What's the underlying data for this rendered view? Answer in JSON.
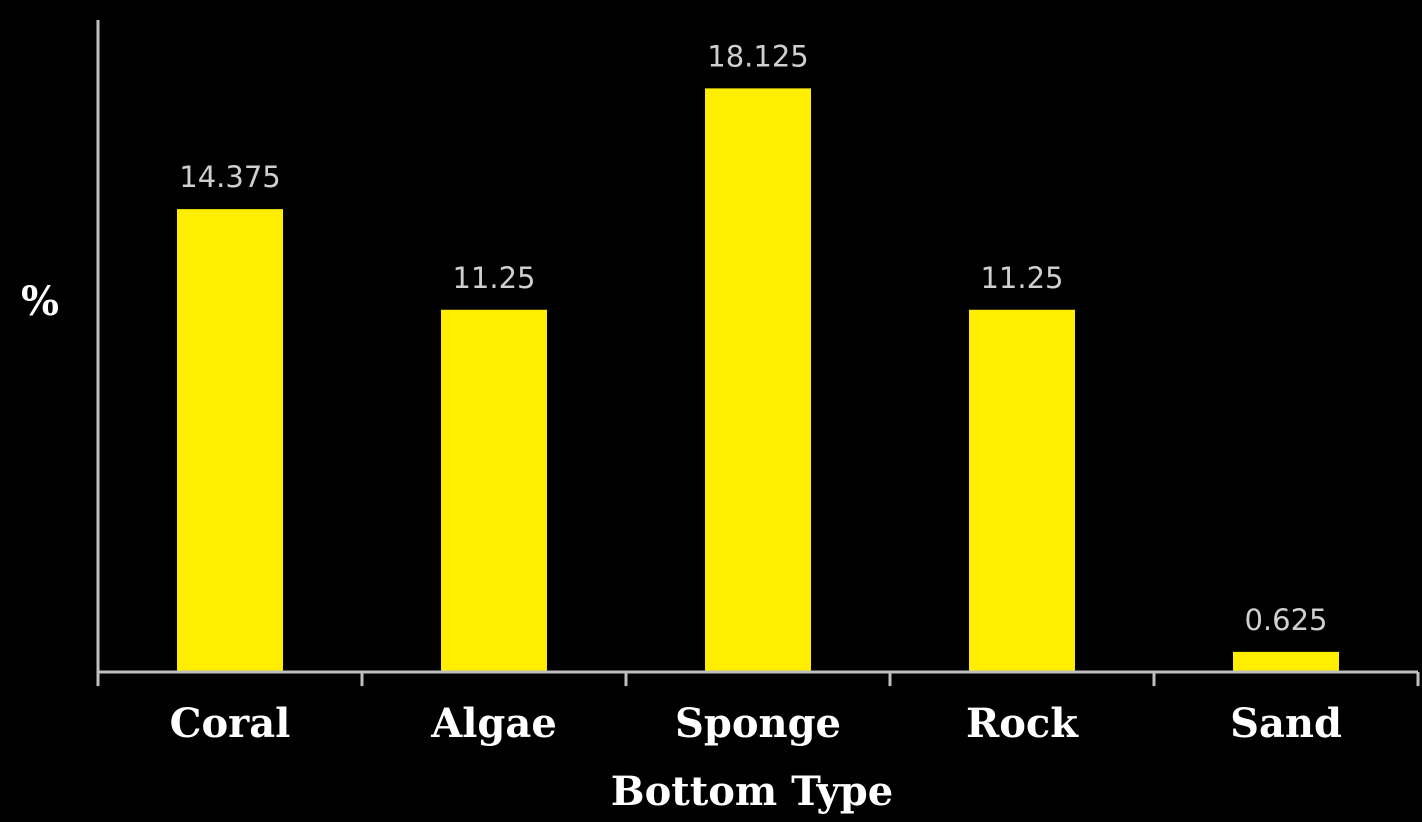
{
  "chart_data": {
    "type": "bar",
    "title": "",
    "xlabel": "Bottom Type",
    "ylabel": "%",
    "categories": [
      "Coral",
      "Algae",
      "Sponge",
      "Rock",
      "Sand"
    ],
    "values": [
      14.375,
      11.25,
      18.125,
      11.25,
      0.625
    ],
    "data_labels": [
      "14.375",
      "11.25",
      "18.125",
      "11.25",
      "0.625"
    ],
    "ylim": [
      0,
      20
    ],
    "grid": false,
    "legend": "none",
    "colors": {
      "bar": "#ffee00",
      "background": "#000000",
      "axis": "#bfbfbf",
      "text": "#ffffff",
      "data_label": "#cfcfcf"
    }
  }
}
